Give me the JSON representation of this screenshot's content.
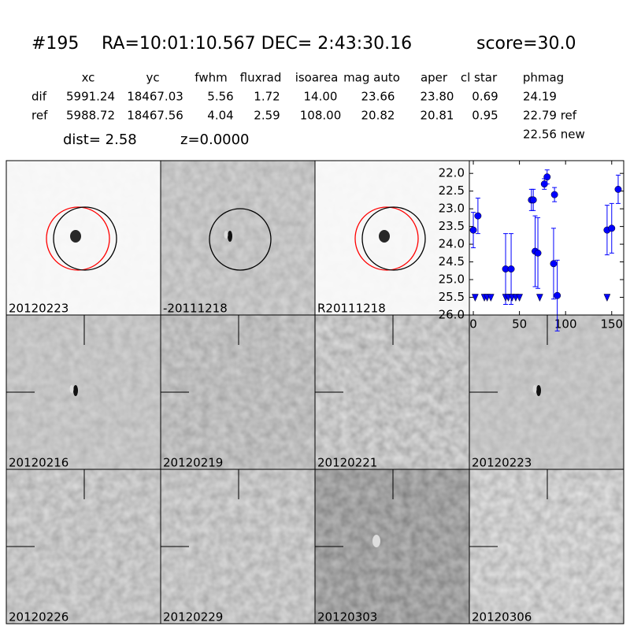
{
  "header": {
    "id": "#195",
    "coords": "RA=10:01:10.567 DEC= 2:43:30.16",
    "score": "score=30.0",
    "dist": "dist=  2.58",
    "z": "z=0.0000"
  },
  "table": {
    "columns": [
      "xc",
      "yc",
      "fwhm",
      "fluxrad",
      "isoarea",
      "mag auto",
      "aper",
      "cl star",
      "phmag"
    ],
    "rows": [
      [
        "dif",
        "5991.24",
        "18467.03",
        "5.56",
        "1.72",
        "14.00",
        "23.66",
        "23.80",
        "0.69",
        "24.19"
      ],
      [
        "ref",
        "5988.72",
        "18467.56",
        "4.04",
        "2.59",
        "108.00",
        "20.82",
        "20.81",
        "0.95",
        "22.79 ref"
      ]
    ],
    "extra": "22.56 new"
  },
  "panels": [
    "20120223",
    "-20111218",
    "R20111218",
    "20120216",
    "20120219",
    "20120221",
    "20120223",
    "20120226",
    "20120229",
    "20120303",
    "20120306"
  ],
  "chart_data": {
    "type": "scatter",
    "xlim": [
      -4.3,
      163
    ],
    "ylim": [
      26,
      21.64
    ],
    "y_inverted": true,
    "xticks": [
      0,
      50,
      100,
      150
    ],
    "yticks": [
      {
        "value": 22,
        "label": "22.0"
      },
      {
        "value": 22.5,
        "label": "22.5"
      },
      {
        "value": 23,
        "label": "23.0"
      },
      {
        "value": 23.5,
        "label": "23.5"
      },
      {
        "value": 24,
        "label": "24.0"
      },
      {
        "value": 24.5,
        "label": "24.5"
      },
      {
        "value": 25,
        "label": "25.0"
      },
      {
        "value": 25.5,
        "label": "25.5"
      },
      {
        "value": 26,
        "label": "26.0"
      }
    ],
    "series": [
      {
        "marker": "circle",
        "color": "#0000ff",
        "x": [
          0,
          5,
          35,
          41,
          63,
          65,
          67,
          70,
          77,
          80,
          87,
          88,
          91,
          145,
          150,
          157
        ],
        "values": [
          23.6,
          23.2,
          24.7,
          24.7,
          22.75,
          22.75,
          24.2,
          24.25,
          22.3,
          22.1,
          24.55,
          22.6,
          25.45,
          23.6,
          23.55,
          22.45
        ],
        "errors": [
          0.5,
          0.5,
          1.0,
          1.0,
          0.3,
          0.3,
          1.0,
          1.0,
          0.15,
          0.2,
          1.0,
          0.2,
          1.0,
          0.7,
          0.7,
          0.4
        ]
      },
      {
        "marker": "triangle-down",
        "color": "#0000ff",
        "x": [
          2,
          12,
          15,
          19,
          35,
          38,
          42,
          46,
          50,
          72,
          145
        ],
        "values": [
          25.5,
          25.5,
          25.5,
          25.5,
          25.5,
          25.5,
          25.5,
          25.5,
          25.5,
          25.5,
          25.5
        ]
      }
    ]
  }
}
